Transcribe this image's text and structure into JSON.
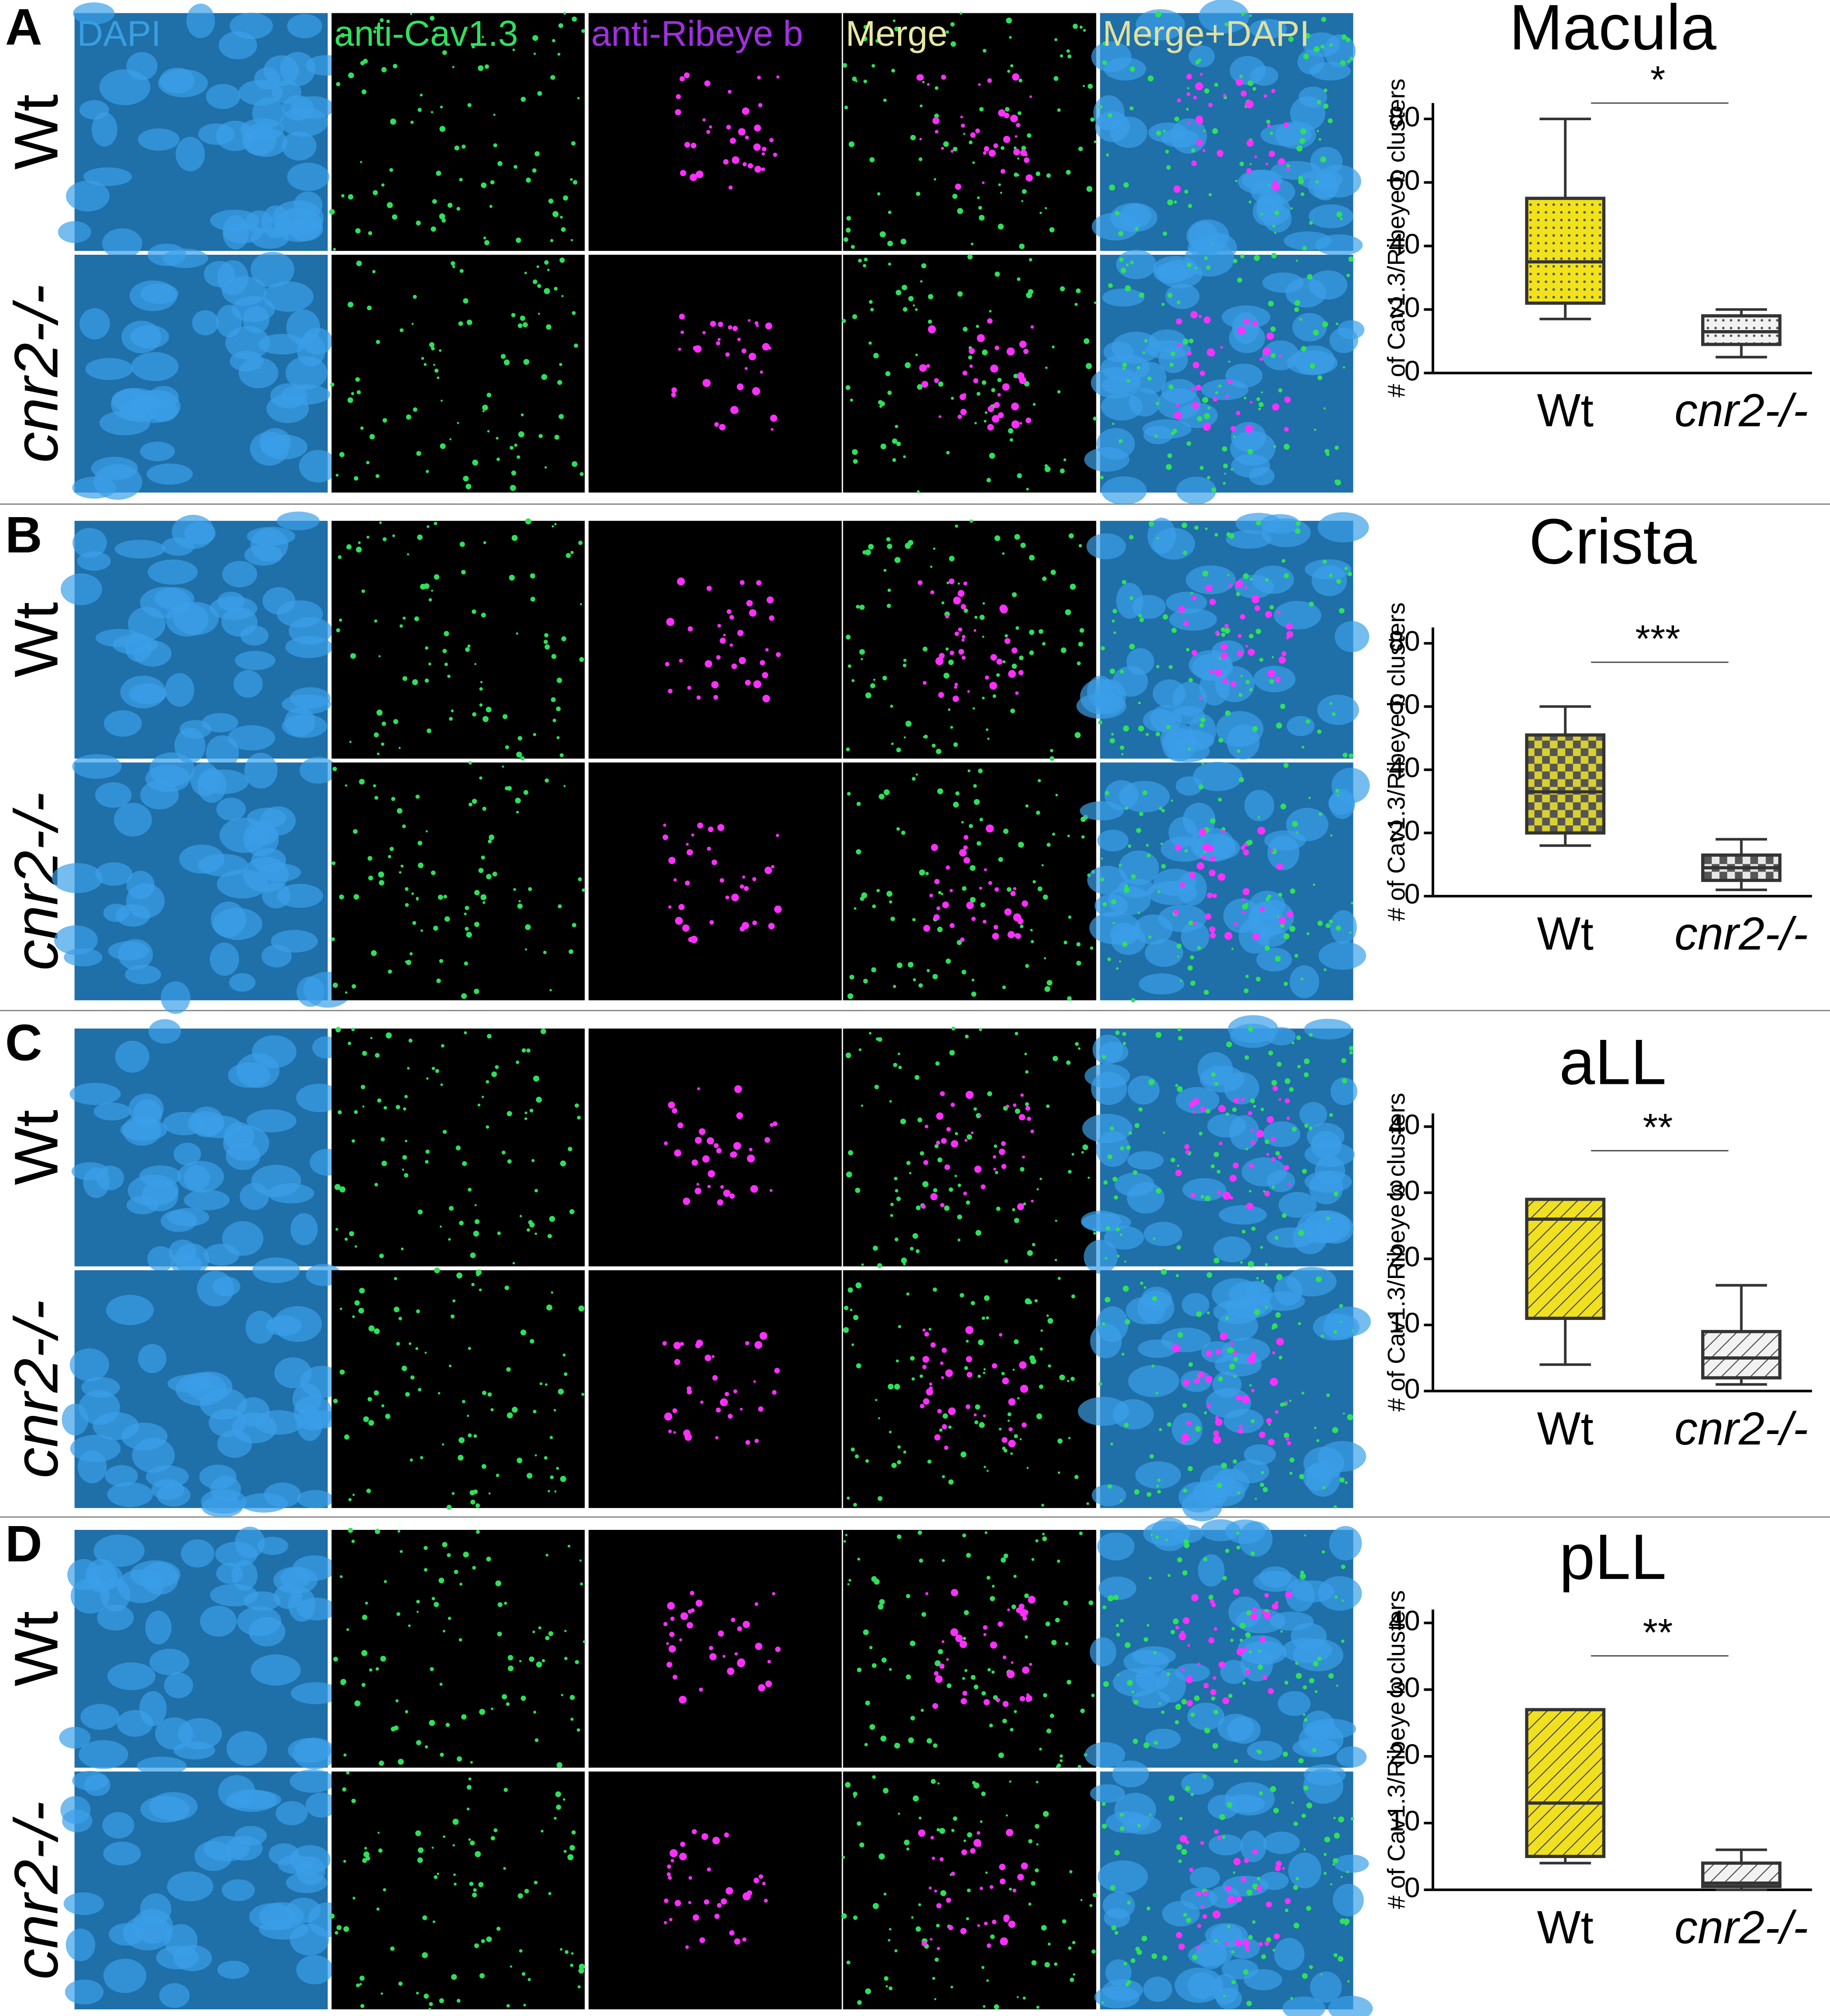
{
  "figure": {
    "panel_labels": [
      "A",
      "B",
      "C",
      "D"
    ],
    "column_headers": [
      "DAPI",
      "anti-Cav1.3",
      "anti-Ribeye b",
      "Merge",
      "Merge+DAPI"
    ],
    "row_labels": [
      "Wt",
      "cnr2-/-"
    ]
  },
  "chart_data": [
    {
      "type": "box",
      "title": "Macula",
      "y_label": "# of Cav1.3/Ribeye b clusters",
      "annotation": "*",
      "categories": [
        "Wt",
        "cnr2-/-"
      ],
      "min": [
        17,
        5
      ],
      "q1": [
        22,
        9
      ],
      "median": [
        35,
        13
      ],
      "q3": [
        55,
        18
      ],
      "max": [
        80,
        20
      ],
      "colors": [
        "#f2e21a",
        "#f2f2f2"
      ],
      "patterns": [
        "dots",
        "dots"
      ],
      "ylim": [
        0,
        85
      ],
      "yticks": [
        0,
        20,
        40,
        60,
        80
      ]
    },
    {
      "type": "box",
      "title": "Crista",
      "y_label": "# of Cav1.3/Ribeye b clusters",
      "annotation": "***",
      "categories": [
        "Wt",
        "cnr2-/-"
      ],
      "min": [
        16,
        2
      ],
      "q1": [
        20,
        5
      ],
      "median": [
        33,
        9
      ],
      "q3": [
        51,
        13
      ],
      "max": [
        60,
        18
      ],
      "colors": [
        "#d8d030",
        "#e8e8e8"
      ],
      "patterns": [
        "checker",
        "checker"
      ],
      "ylim": [
        0,
        85
      ],
      "yticks": [
        0,
        20,
        40,
        60,
        80
      ]
    },
    {
      "type": "box",
      "title": "aLL",
      "y_label": "# of Cav1.3/Ribeye b clusters",
      "annotation": "**",
      "categories": [
        "Wt",
        "cnr2-/-"
      ],
      "min": [
        4,
        1
      ],
      "q1": [
        11,
        2
      ],
      "median": [
        26,
        5
      ],
      "q3": [
        29,
        9
      ],
      "max": [
        29,
        16
      ],
      "colors": [
        "#f0e020",
        "#f2f2f2"
      ],
      "patterns": [
        "hatch",
        "hatch"
      ],
      "ylim": [
        0,
        42
      ],
      "yticks": [
        0,
        10,
        20,
        30,
        40
      ]
    },
    {
      "type": "box",
      "title": "pLL",
      "y_label": "# of Cav1.3/Ribeye b clusters",
      "annotation": "**",
      "categories": [
        "Wt",
        "cnr2-/-"
      ],
      "min": [
        4,
        0
      ],
      "q1": [
        5,
        0.5
      ],
      "median": [
        13,
        1
      ],
      "q3": [
        27,
        4
      ],
      "max": [
        27,
        6
      ],
      "colors": [
        "#f0e020",
        "#f2f2f2"
      ],
      "patterns": [
        "hatch",
        "hatch"
      ],
      "ylim": [
        0,
        42
      ],
      "yticks": [
        0,
        10,
        20,
        30,
        40
      ]
    }
  ]
}
